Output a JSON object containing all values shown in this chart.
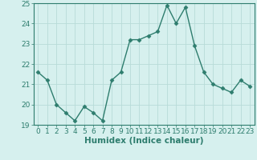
{
  "x": [
    0,
    1,
    2,
    3,
    4,
    5,
    6,
    7,
    8,
    9,
    10,
    11,
    12,
    13,
    14,
    15,
    16,
    17,
    18,
    19,
    20,
    21,
    22,
    23
  ],
  "y": [
    21.6,
    21.2,
    20.0,
    19.6,
    19.2,
    19.9,
    19.6,
    19.2,
    21.2,
    21.6,
    23.2,
    23.2,
    23.4,
    23.6,
    24.9,
    24.0,
    24.8,
    22.9,
    21.6,
    21.0,
    20.8,
    20.6,
    21.2,
    20.9
  ],
  "line_color": "#2e7d6e",
  "marker": "D",
  "markersize": 2.5,
  "linewidth": 1.0,
  "bg_color": "#d6f0ee",
  "grid_color": "#b8dbd8",
  "xlabel": "Humidex (Indice chaleur)",
  "ylim": [
    19,
    25
  ],
  "xlim": [
    -0.5,
    23.5
  ],
  "yticks": [
    19,
    20,
    21,
    22,
    23,
    24,
    25
  ],
  "xticks": [
    0,
    1,
    2,
    3,
    4,
    5,
    6,
    7,
    8,
    9,
    10,
    11,
    12,
    13,
    14,
    15,
    16,
    17,
    18,
    19,
    20,
    21,
    22,
    23
  ],
  "tick_fontsize": 6.5,
  "label_fontsize": 7.5,
  "spine_color": "#2e7d6e"
}
